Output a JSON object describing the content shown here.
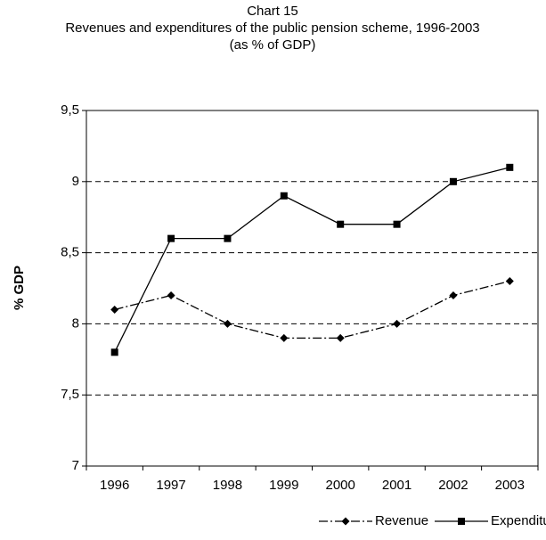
{
  "chart_data": {
    "type": "line",
    "title": "Chart 15",
    "subtitle": [
      "Revenues and expenditures of  the public pension scheme, 1996-2003",
      "(as % of GDP)"
    ],
    "y_label": "% GDP",
    "categories": [
      "1996",
      "1997",
      "1998",
      "1999",
      "2000",
      "2001",
      "2002",
      "2003"
    ],
    "series": [
      {
        "name": "Revenue",
        "color": "#000000",
        "values": [
          8.1,
          8.2,
          8.0,
          7.9,
          7.9,
          8.0,
          8.2,
          8.3
        ]
      },
      {
        "name": "Expenditure",
        "color": "#000000",
        "values": [
          7.8,
          8.6,
          8.6,
          8.9,
          8.7,
          8.7,
          9.0,
          9.1
        ]
      }
    ],
    "ylim": [
      7,
      9.5
    ],
    "yticks": [
      7,
      {
        "value": 7.5,
        "label": "7,5"
      },
      8,
      {
        "value": 8.5,
        "label": "8,5"
      },
      9,
      {
        "value": 9.5,
        "label": "9,5"
      }
    ],
    "grid": true,
    "legend": "bottom"
  }
}
